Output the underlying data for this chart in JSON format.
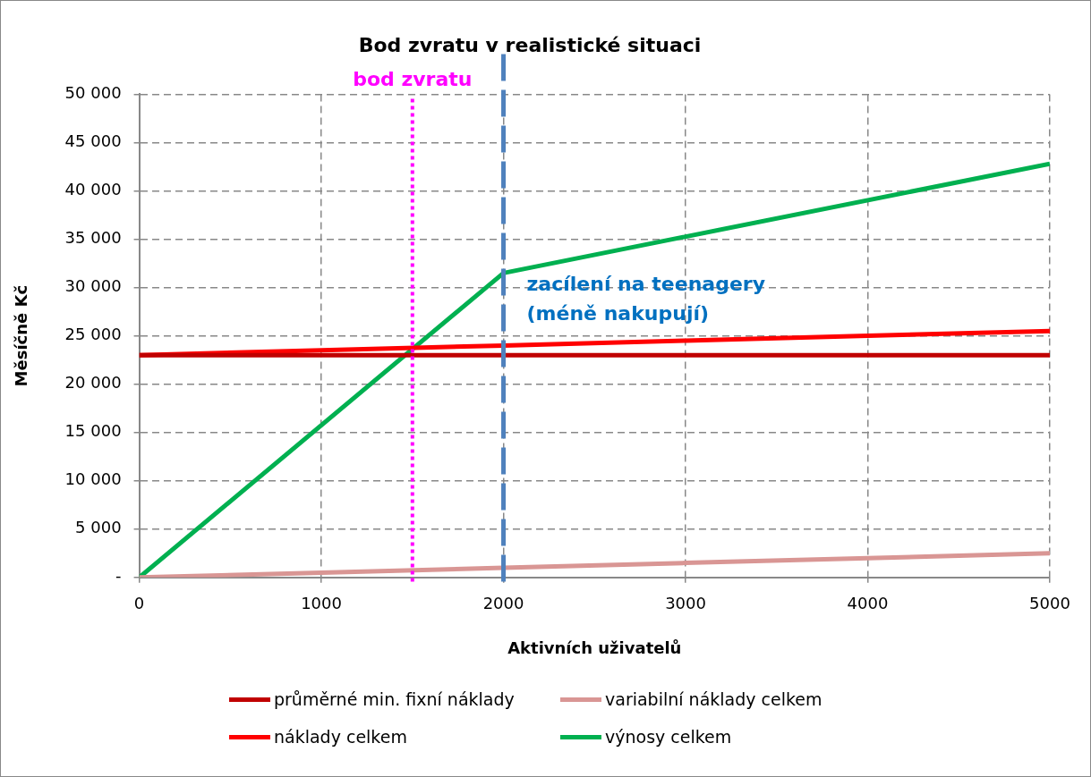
{
  "chart_data": {
    "type": "line",
    "title": "Bod zvratu v realistické situaci",
    "xlabel": "Aktivních uživatelů",
    "ylabel": "Měsíčně Kč",
    "x": [
      0,
      1000,
      2000,
      3000,
      4000,
      5000
    ],
    "series": [
      {
        "name": "průměrné min. fixní náklady",
        "color": "#c00000",
        "values": [
          23000,
          23000,
          23000,
          23000,
          23000,
          23000
        ]
      },
      {
        "name": "variabilní náklady celkem",
        "color": "#d99694",
        "values": [
          0,
          500,
          1000,
          1500,
          2000,
          2500
        ]
      },
      {
        "name": "náklady celkem",
        "color": "#ff0000",
        "values": [
          23000,
          23500,
          24000,
          24500,
          25000,
          25500
        ]
      },
      {
        "name": "výnosy celkem",
        "color": "#00b050",
        "x": [
          0,
          2000,
          5000
        ],
        "values": [
          0,
          31500,
          42800
        ]
      }
    ],
    "xlim": [
      0,
      5000
    ],
    "xticks": [
      0,
      1000,
      2000,
      3000,
      4000,
      5000
    ],
    "ylim": [
      0,
      50000
    ],
    "yticks": [
      {
        "value": 0,
        "label": "-"
      },
      {
        "value": 5000,
        "label": "5 000"
      },
      {
        "value": 10000,
        "label": "10 000"
      },
      {
        "value": 15000,
        "label": "15 000"
      },
      {
        "value": 20000,
        "label": "20 000"
      },
      {
        "value": 25000,
        "label": "25 000"
      },
      {
        "value": 30000,
        "label": "30 000"
      },
      {
        "value": 35000,
        "label": "35 000"
      },
      {
        "value": 40000,
        "label": "40 000"
      },
      {
        "value": 45000,
        "label": "45 000"
      },
      {
        "value": 50000,
        "label": "50 000"
      }
    ],
    "ref_lines": [
      {
        "axis": "x",
        "value": 1500,
        "label": "bod zvratu",
        "color": "#ff00ff",
        "line_style": "dotted"
      },
      {
        "axis": "x",
        "value": 2000,
        "label": "zacílení na teenagery (méně nakupují)",
        "color": "#4f81bd",
        "line_style": "dashed"
      }
    ],
    "grid": true,
    "legend": "bottom",
    "marker": "none",
    "line_style": "solid"
  }
}
